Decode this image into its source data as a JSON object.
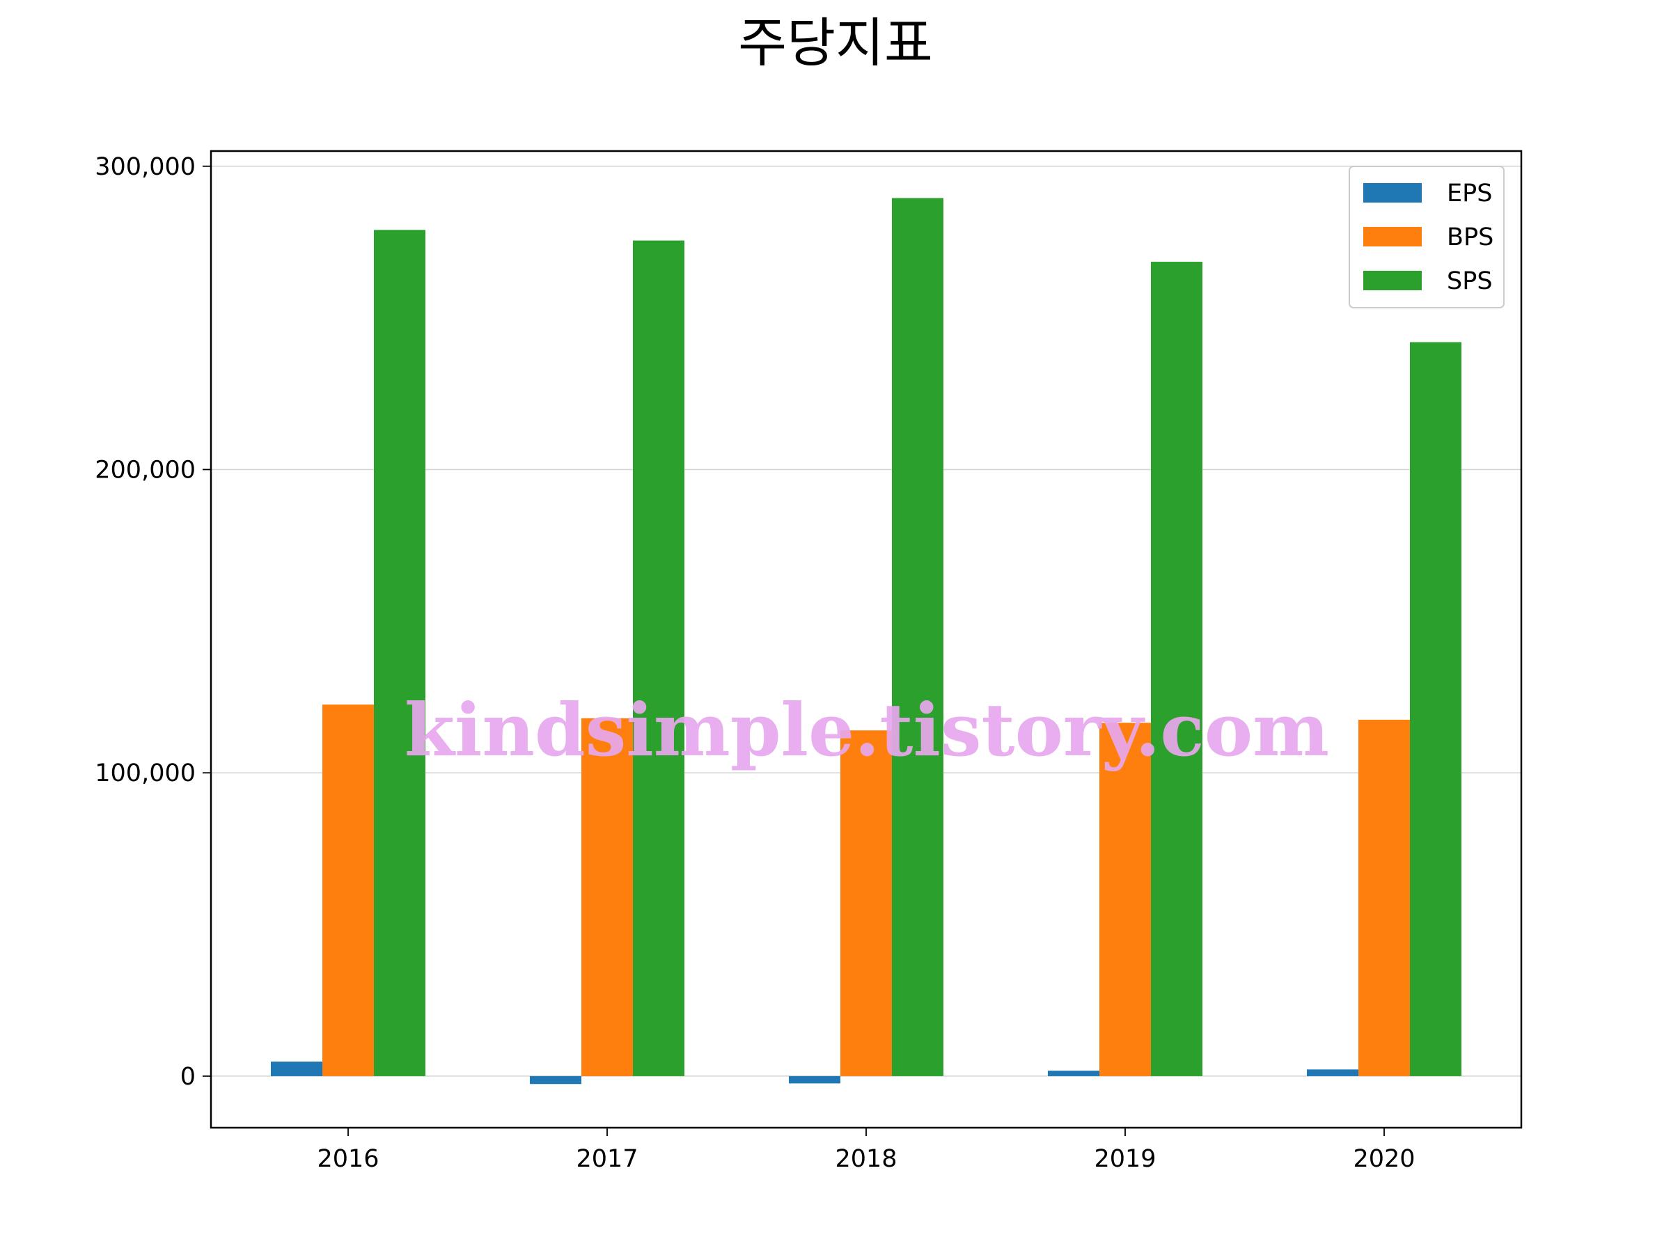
{
  "chart_data": {
    "type": "bar",
    "title": "주당지표",
    "xlabel": "",
    "ylabel": "",
    "categories": [
      "2016",
      "2017",
      "2018",
      "2019",
      "2020"
    ],
    "series": [
      {
        "name": "EPS",
        "color": "#1f77b4",
        "values": [
          4800,
          -2600,
          -2400,
          1800,
          2200
        ]
      },
      {
        "name": "BPS",
        "color": "#ff7f0e",
        "values": [
          122500,
          118000,
          114000,
          116500,
          117500
        ]
      },
      {
        "name": "SPS",
        "color": "#2ca02c",
        "values": [
          279000,
          275500,
          289500,
          268500,
          242000
        ]
      }
    ],
    "ylim": [
      -17000,
      305000
    ],
    "yticks": [
      0,
      100000,
      200000,
      300000
    ],
    "ytick_labels": [
      "0",
      "100,000",
      "200,000",
      "300,000"
    ],
    "grid": "horizontal",
    "legend_position": "top-right"
  },
  "watermark": "kindsimple.tistory.com"
}
